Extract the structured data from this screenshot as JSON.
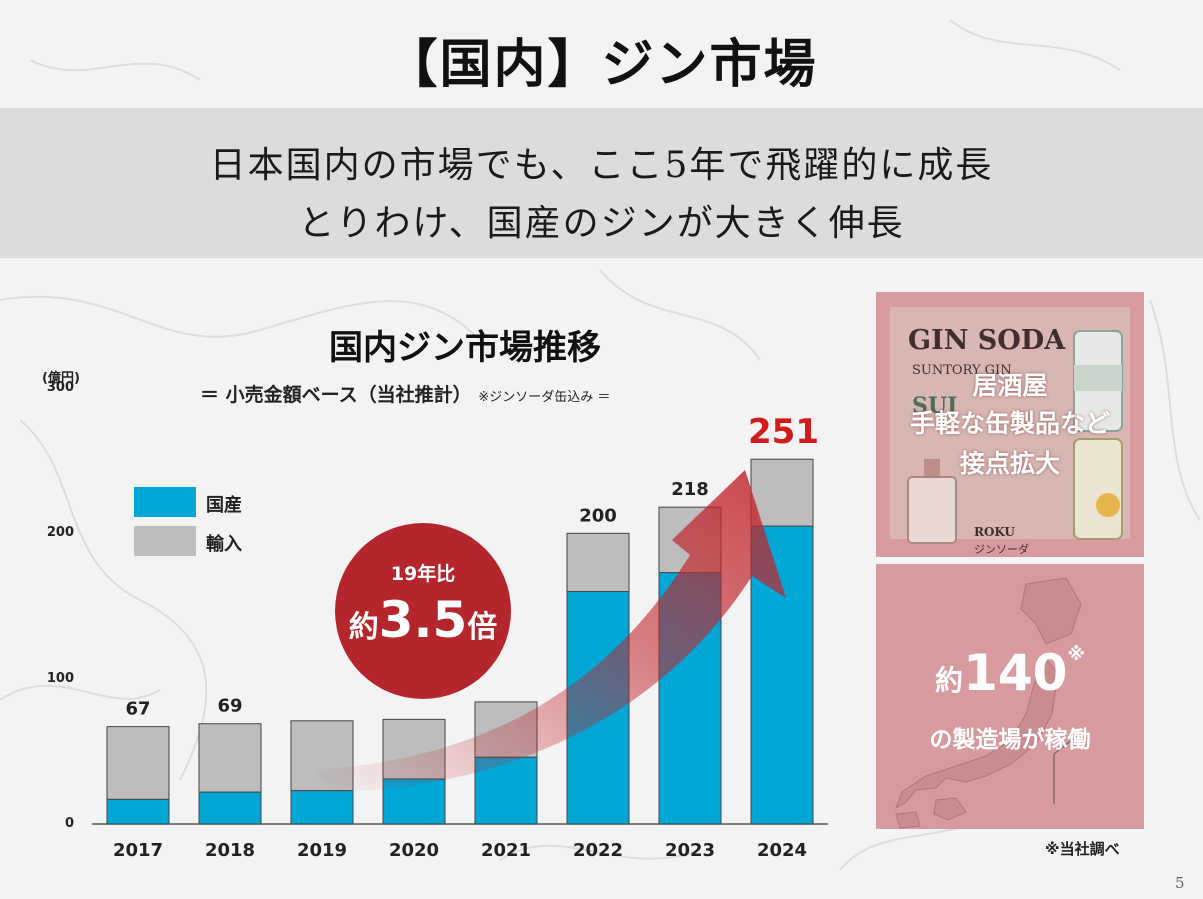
{
  "title": "【国内】ジン市場",
  "banner": {
    "line1": "日本国内の市場でも、ここ5年で飛躍的に成長",
    "line2": "とりわけ、国産のジンが大きく伸長"
  },
  "chart_title": "国内ジン市場推移",
  "chart_subtitle": "＝ 小売金額ベース（当社推計）",
  "chart_subtitle_note": "※ジンソーダ缶込み ＝",
  "chart_data": {
    "type": "bar",
    "stacked": true,
    "unit_label": "(億円)",
    "categories": [
      "2017",
      "2018",
      "2019",
      "2020",
      "2021",
      "2022",
      "2023",
      "2024"
    ],
    "series": [
      {
        "name": "国産",
        "color": "#00a6d6",
        "values": [
          17,
          22,
          23,
          31,
          46,
          160,
          173,
          205
        ]
      },
      {
        "name": "輸入",
        "color": "#bdbdbd",
        "values": [
          50,
          47,
          48,
          41,
          38,
          40,
          45,
          46
        ]
      }
    ],
    "totals_labeled": [
      {
        "category": "2017",
        "label": "67"
      },
      {
        "category": "2018",
        "label": "69"
      },
      {
        "category": "2022",
        "label": "200"
      },
      {
        "category": "2023",
        "label": "218"
      }
    ],
    "highlight_total": {
      "category": "2024",
      "label": "251",
      "color": "#d01c1c"
    },
    "ylim": [
      0,
      300
    ],
    "yticks": [
      "0",
      "100",
      "200",
      "300"
    ],
    "legend_position": "upper-left",
    "grid": false
  },
  "growth_callout": {
    "line1": "19年比",
    "prefix": "約",
    "value": "3.5",
    "suffix": "倍",
    "color": "#b5262c"
  },
  "panel1": {
    "ad_title": "GIN SODA",
    "ad_brand": "SUNTORY GIN",
    "ad_sui": "SUI",
    "ad_roku": "ROKU",
    "ad_gin_soda_jp": "ジンソーダ",
    "caption_lines": [
      "居酒屋",
      "手軽な缶製品など",
      "接点拡大"
    ]
  },
  "panel2": {
    "prefix": "約",
    "value": "140",
    "mark": "※",
    "caption": "の製造場が稼働"
  },
  "footnote": "※当社調べ",
  "page_number": "5"
}
